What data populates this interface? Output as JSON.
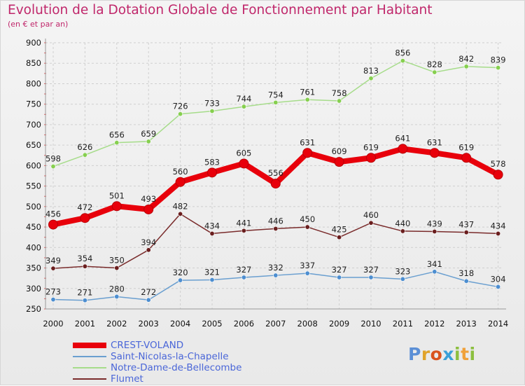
{
  "header": {
    "title": "Evolution de la Dotation Globale de Fonctionnement par Habitant",
    "subtitle": "(en € et par an)"
  },
  "logo": {
    "text": "Proxiti",
    "letter_colors": [
      "#5b8fd6",
      "#e0a32a",
      "#d9531e",
      "#3aa0d8",
      "#8cbf3f",
      "#f0a13a",
      "#8cbf3f"
    ]
  },
  "chart_data": {
    "type": "line",
    "title": "Evolution de la Dotation Globale de Fonctionnement par Habitant",
    "subtitle": "(en € et par an)",
    "x": [
      2000,
      2001,
      2002,
      2003,
      2004,
      2005,
      2006,
      2007,
      2008,
      2009,
      2010,
      2011,
      2012,
      2013,
      2014
    ],
    "ylim": [
      250,
      900
    ],
    "yticks": [
      250,
      300,
      350,
      400,
      450,
      500,
      550,
      600,
      650,
      700,
      750,
      800,
      850,
      900
    ],
    "grid": true,
    "legend_position": "bottom-left",
    "series": [
      {
        "name": "CREST-VOLAND",
        "color": "#e8000b",
        "emphasis": true,
        "values": [
          456,
          472,
          501,
          493,
          560,
          583,
          605,
          556,
          631,
          609,
          619,
          641,
          631,
          619,
          578
        ]
      },
      {
        "name": "Saint-Nicolas-la-Chapelle",
        "color": "#6a9fd0",
        "marker": "#4d8ed0",
        "values": [
          273,
          271,
          280,
          272,
          320,
          321,
          327,
          332,
          337,
          327,
          327,
          323,
          341,
          318,
          304
        ]
      },
      {
        "name": "Notre-Dame-de-Bellecombe",
        "color": "#a6dc8a",
        "marker": "#86cf4f",
        "values": [
          598,
          626,
          656,
          659,
          726,
          733,
          744,
          754,
          761,
          758,
          813,
          856,
          828,
          842,
          839
        ]
      },
      {
        "name": "Flumet",
        "color": "#7a2c2c",
        "marker": "#6a1e1e",
        "values": [
          349,
          354,
          350,
          394,
          482,
          434,
          441,
          446,
          450,
          425,
          460,
          440,
          439,
          437,
          434
        ]
      }
    ]
  }
}
